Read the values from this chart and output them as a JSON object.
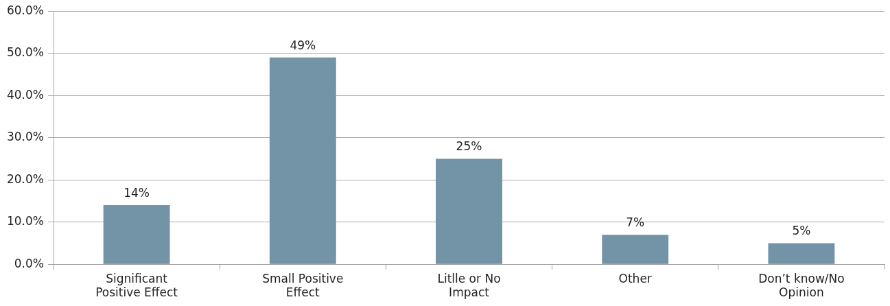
{
  "chart_data": {
    "type": "bar",
    "categories": [
      "Significant Positive Effect",
      "Small Positive Effect",
      "Litlle or No Impact",
      "Other",
      "Don’t know/No Opinion"
    ],
    "values": [
      14,
      49,
      25,
      7,
      5
    ],
    "value_labels": [
      "14%",
      "49%",
      "25%",
      "7%",
      "5%"
    ],
    "color": "#7393a7",
    "ylim": [
      0,
      60
    ],
    "yticks": [
      {
        "value": 0,
        "label": "0.0%"
      },
      {
        "value": 10,
        "label": "10.0%"
      },
      {
        "value": 20,
        "label": "20.0%"
      },
      {
        "value": 30,
        "label": "30.0%"
      },
      {
        "value": 40,
        "label": "40.0%"
      },
      {
        "value": 50,
        "label": "50.0%"
      },
      {
        "value": 60,
        "label": "60.0%"
      }
    ],
    "grid": "y",
    "legend": false
  }
}
